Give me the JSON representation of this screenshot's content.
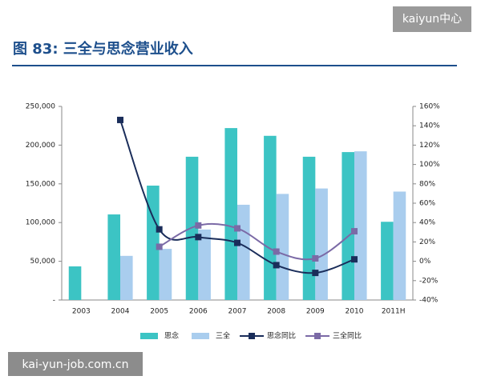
{
  "chart_data": {
    "type": "bar-line",
    "title": "图 83: 三全与思念营业收入",
    "watermark_top": "kaiyun中心",
    "watermark_bottom": "kai-yun-job.com.cn",
    "categories": [
      "2003",
      "2004",
      "2005",
      "2006",
      "2007",
      "2008",
      "2009",
      "2010",
      "2011H"
    ],
    "ylim": [
      0,
      250000
    ],
    "yticks": [
      {
        "value": 0,
        "label": "-"
      },
      {
        "value": 50000,
        "label": "50,000"
      },
      {
        "value": 100000,
        "label": "100,000"
      },
      {
        "value": 150000,
        "label": "150,000"
      },
      {
        "value": 200000,
        "label": "200,000"
      },
      {
        "value": 250000,
        "label": "250,000"
      }
    ],
    "y2lim": [
      -40,
      160
    ],
    "y2ticks": [
      {
        "value": -40,
        "label": "-40%"
      },
      {
        "value": -20,
        "label": "-20%"
      },
      {
        "value": 0,
        "label": "0%"
      },
      {
        "value": 20,
        "label": "20%"
      },
      {
        "value": 40,
        "label": "40%"
      },
      {
        "value": 60,
        "label": "60%"
      },
      {
        "value": 80,
        "label": "80%"
      },
      {
        "value": 100,
        "label": "100%"
      },
      {
        "value": 120,
        "label": "120%"
      },
      {
        "value": 140,
        "label": "140%"
      },
      {
        "value": 160,
        "label": "160%"
      }
    ],
    "series": [
      {
        "name": "思念",
        "type": "bar",
        "color": "#3cc4c4",
        "values": [
          43400,
          110500,
          147700,
          185000,
          222000,
          212000,
          185000,
          191000,
          101000
        ]
      },
      {
        "name": "三全",
        "type": "bar",
        "color": "#a9cdee",
        "values": [
          null,
          57000,
          66000,
          91000,
          123000,
          137000,
          144000,
          192000,
          140000
        ]
      },
      {
        "name": "思念同比",
        "type": "line",
        "axis": "y2",
        "color": "#1a2d5a",
        "values": [
          null,
          146,
          33,
          25,
          19,
          -4,
          -12,
          2,
          null
        ]
      },
      {
        "name": "三全同比",
        "type": "line",
        "axis": "y2",
        "color": "#7b6aa6",
        "values": [
          null,
          null,
          15,
          37,
          34,
          10,
          3,
          31,
          null
        ]
      }
    ]
  }
}
